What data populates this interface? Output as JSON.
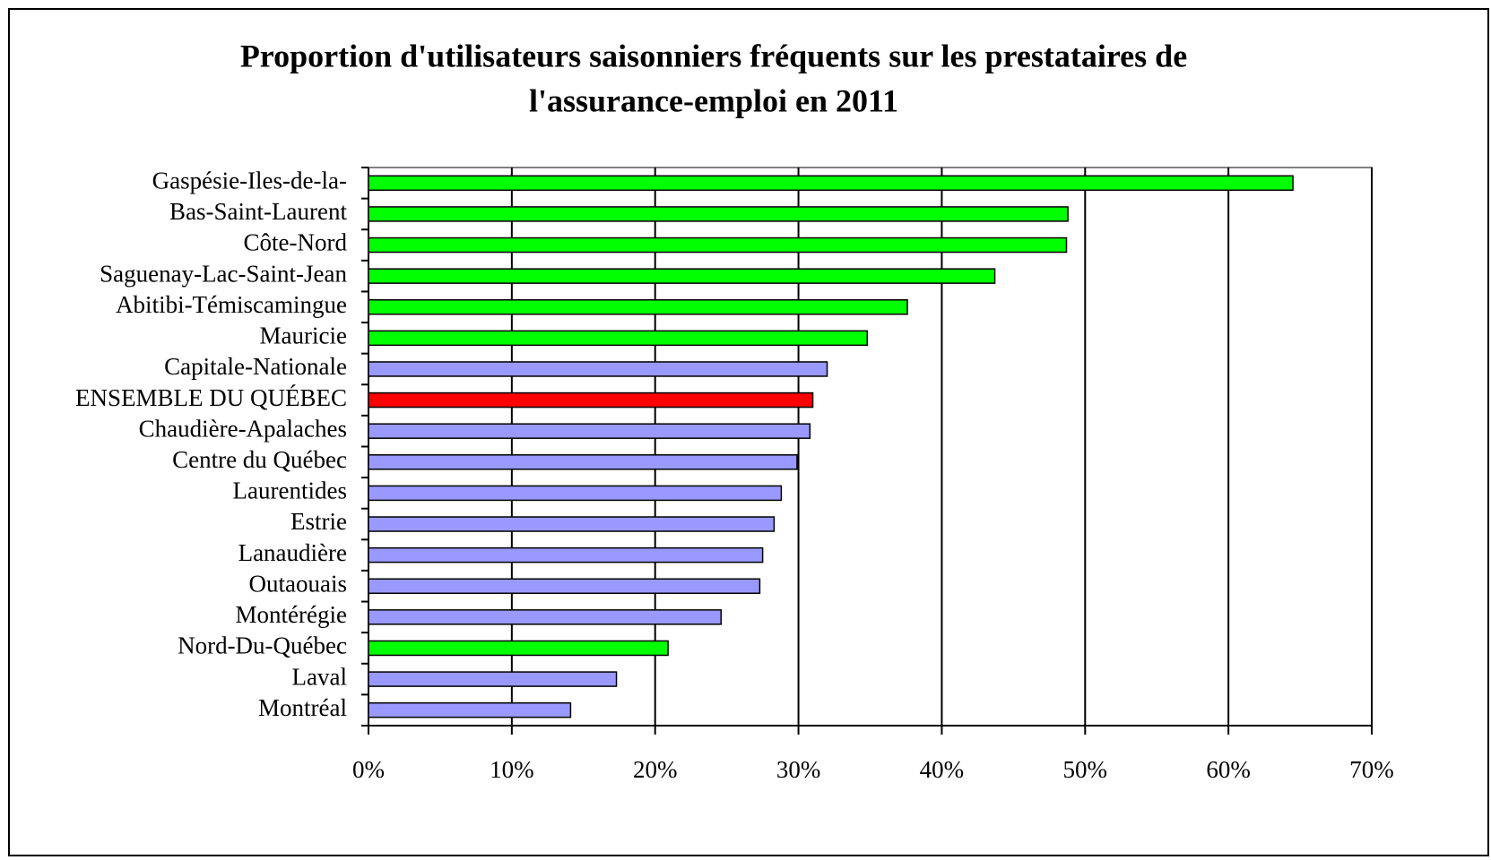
{
  "chart_data": {
    "type": "bar",
    "orientation": "horizontal",
    "title": [
      "Proportion d'utilisateurs saisonniers fréquents sur les prestataires de",
      "l'assurance-emploi en 2011"
    ],
    "categories": [
      "Gaspésie-Iles-de-la-",
      "Bas-Saint-Laurent",
      "Côte-Nord",
      "Saguenay-Lac-Saint-Jean",
      "Abitibi-Témiscamingue",
      "Mauricie",
      "Capitale-Nationale",
      "ENSEMBLE DU QUÉBEC",
      "Chaudière-Apalaches",
      "Centre du Québec",
      "Laurentides",
      "Estrie",
      "Lanaudière",
      "Outaouais",
      "Montérégie",
      "Nord-Du-Québec",
      "Laval",
      "Montréal"
    ],
    "values": [
      64.5,
      48.8,
      48.7,
      43.7,
      37.6,
      34.8,
      32.0,
      31.0,
      30.8,
      29.9,
      28.8,
      28.3,
      27.5,
      27.3,
      24.6,
      20.9,
      17.3,
      14.1
    ],
    "colors": [
      "#00ff00",
      "#00ff00",
      "#00ff00",
      "#00ff00",
      "#00ff00",
      "#00ff00",
      "#9999ff",
      "#ff0000",
      "#9999ff",
      "#9999ff",
      "#9999ff",
      "#9999ff",
      "#9999ff",
      "#9999ff",
      "#9999ff",
      "#00ff00",
      "#9999ff",
      "#9999ff"
    ],
    "xlim": [
      0,
      70
    ],
    "xticks": [
      {
        "value": 0,
        "label": "0%"
      },
      {
        "value": 10,
        "label": "10%"
      },
      {
        "value": 20,
        "label": "20%"
      },
      {
        "value": 30,
        "label": "30%"
      },
      {
        "value": 40,
        "label": "40%"
      },
      {
        "value": 50,
        "label": "50%"
      },
      {
        "value": 60,
        "label": "60%"
      },
      {
        "value": 70,
        "label": "70%"
      }
    ],
    "grid": true
  }
}
